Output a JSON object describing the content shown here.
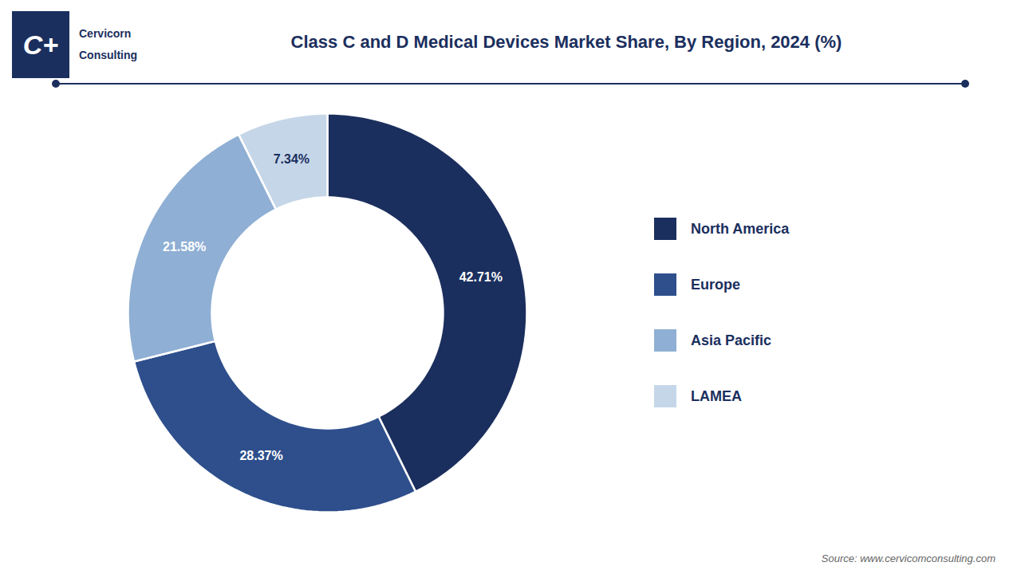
{
  "chart_data": {
    "type": "donut",
    "title": "Class C and D Medical Devices Market Share, By Region, 2024 (%)",
    "categories": [
      "North America",
      "Europe",
      "Asia Pacific",
      "LAMEA"
    ],
    "values": [
      42.71,
      28.37,
      21.58,
      7.34
    ],
    "value_labels": [
      "42.71%",
      "28.37%",
      "21.58%",
      "7.34%"
    ],
    "colors": [
      "#1b2f5e",
      "#2e4f8c",
      "#8fafd4",
      "#c5d6e8"
    ],
    "data_labels": true,
    "legend": "right",
    "annotations": [
      "C+",
      "Cervicorn",
      "Consulting",
      "Source: www.cervicomconsulting.com"
    ]
  }
}
